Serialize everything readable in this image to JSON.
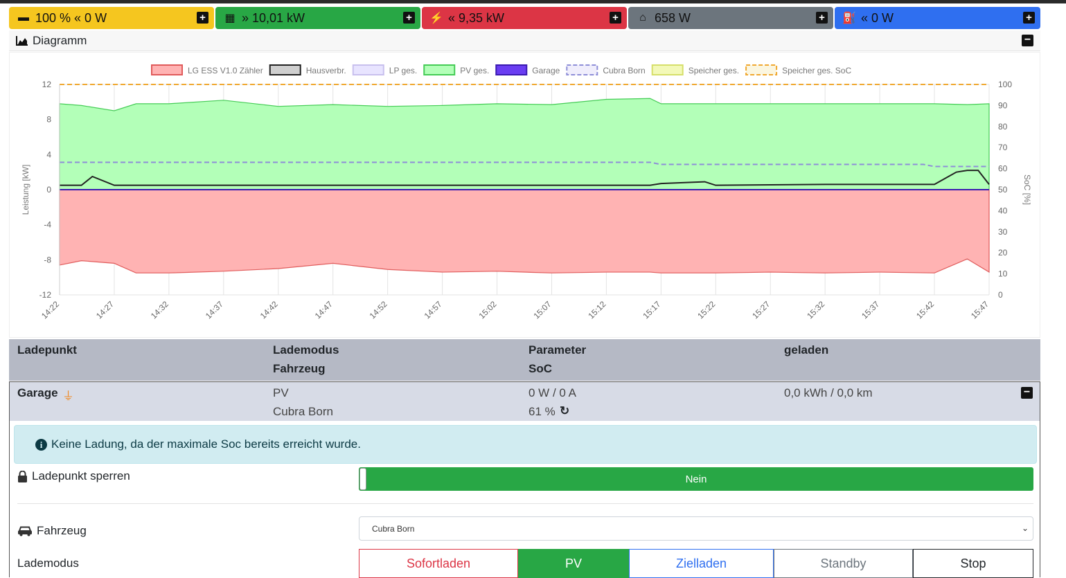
{
  "stats": {
    "battery": {
      "text": "100 % « 0 W",
      "icon": "battery-icon"
    },
    "pv": {
      "text": "» 10,01 kW",
      "icon": "solar-panel-icon"
    },
    "grid": {
      "text": "« 9,35 kW",
      "icon": "power-tower-icon"
    },
    "house": {
      "text": "658 W",
      "icon": "home-icon"
    },
    "charge": {
      "text": "« 0 W",
      "icon": "charging-station-icon"
    }
  },
  "diagram": {
    "title": "Diagramm"
  },
  "chart_data": {
    "type": "area",
    "title": "",
    "ylabel": "Leistung [kW]",
    "y2label": "SoC [%]",
    "ylim": [
      -12,
      12
    ],
    "y2lim": [
      0,
      100
    ],
    "yticks": [
      "12",
      "8",
      "4",
      "0",
      "-4",
      "-8",
      "-12"
    ],
    "y2ticks": [
      "100",
      "90",
      "80",
      "70",
      "60",
      "50",
      "40",
      "30",
      "20",
      "10",
      "0"
    ],
    "xticks": [
      "14:22",
      "14:27",
      "14:32",
      "14:37",
      "14:42",
      "14:47",
      "14:52",
      "14:57",
      "15:02",
      "15:07",
      "15:12",
      "15:17",
      "15:22",
      "15:27",
      "15:32",
      "15:37",
      "15:42",
      "15:47"
    ],
    "legend": [
      {
        "name": "LG ESS V1.0 Zähler",
        "fill": "#ffb3b3",
        "stroke": "#e05a5a",
        "dash": false
      },
      {
        "name": "Hausverbr.",
        "fill": "#cfcfcf",
        "stroke": "#222222",
        "dash": false
      },
      {
        "name": "LP ges.",
        "fill": "#e8e4ff",
        "stroke": "#c8c0ee",
        "dash": false
      },
      {
        "name": "PV ges.",
        "fill": "#b3ffb8",
        "stroke": "#44cc55",
        "dash": false
      },
      {
        "name": "Garage",
        "fill": "#6a3df2",
        "stroke": "#3a1ab0",
        "dash": false
      },
      {
        "name": "Cubra Born",
        "fill": "#f0eefc",
        "stroke": "#8e8ed8",
        "dash": true
      },
      {
        "name": "Speicher ges.",
        "fill": "#f3f9b8",
        "stroke": "#d6df6a",
        "dash": false
      },
      {
        "name": "Speicher ges. SoC",
        "fill": "#fbf6e0",
        "stroke": "#f0a830",
        "dash": true
      }
    ],
    "series": [
      {
        "name": "PV ges.",
        "x": [
          "14:22",
          "14:24",
          "14:27",
          "14:29",
          "14:32",
          "14:37",
          "14:42",
          "14:47",
          "14:52",
          "14:57",
          "15:02",
          "15:07",
          "15:12",
          "15:16",
          "15:17",
          "15:22",
          "15:27",
          "15:32",
          "15:37",
          "15:42",
          "15:45",
          "15:47"
        ],
        "values": [
          9.8,
          9.6,
          9.0,
          9.8,
          9.8,
          10.2,
          9.5,
          9.7,
          9.5,
          9.6,
          9.8,
          9.7,
          10.3,
          10.4,
          9.8,
          9.8,
          9.8,
          9.8,
          9.8,
          9.8,
          9.7,
          9.8
        ]
      },
      {
        "name": "LG ESS V1.0 Zähler",
        "x": [
          "14:22",
          "14:24",
          "14:27",
          "14:29",
          "14:32",
          "14:37",
          "14:42",
          "14:47",
          "14:52",
          "14:57",
          "15:02",
          "15:07",
          "15:12",
          "15:16",
          "15:17",
          "15:22",
          "15:27",
          "15:32",
          "15:37",
          "15:42",
          "15:45",
          "15:47"
        ],
        "values": [
          -8.6,
          -8.1,
          -8.4,
          -9.5,
          -9.5,
          -9.3,
          -9.0,
          -8.4,
          -9.1,
          -9.4,
          -9.3,
          -9.5,
          -9.4,
          -9.4,
          -9.5,
          -9.5,
          -9.4,
          -9.5,
          -9.4,
          -9.5,
          -7.9,
          -9.4
        ]
      },
      {
        "name": "Hausverbr.",
        "x": [
          "14:22",
          "14:24",
          "14:25",
          "14:27",
          "14:37",
          "14:47",
          "14:57",
          "15:07",
          "15:16",
          "15:17",
          "15:21",
          "15:22",
          "15:32",
          "15:42",
          "15:44",
          "15:45",
          "15:46",
          "15:47"
        ],
        "values": [
          0.5,
          0.5,
          1.5,
          0.5,
          0.5,
          0.5,
          0.5,
          0.5,
          0.5,
          0.7,
          0.9,
          0.5,
          0.6,
          0.6,
          2.0,
          2.2,
          2.2,
          0.6
        ]
      },
      {
        "name": "Garage",
        "x": [
          "14:22",
          "15:47"
        ],
        "values": [
          0,
          0
        ]
      },
      {
        "name": "Cubra Born",
        "x": [
          "14:22",
          "15:16",
          "15:17",
          "15:41",
          "15:42",
          "15:47"
        ],
        "values": [
          63,
          63,
          62,
          62,
          61,
          61
        ],
        "axis": "y2"
      },
      {
        "name": "Speicher ges. SoC",
        "x": [
          "14:22",
          "15:47"
        ],
        "values": [
          100,
          100
        ],
        "axis": "y2"
      }
    ]
  },
  "table": {
    "head": {
      "ladepunkt": "Ladepunkt",
      "lademodus": "Lademodus",
      "fahrzeug": "Fahrzeug",
      "parameter": "Parameter",
      "soc": "SoC",
      "geladen": "geladen"
    },
    "row": {
      "name": "Garage",
      "mode": "PV",
      "vehicle": "Cubra Born",
      "power": "0 W / 0 A",
      "soc": "61 %",
      "charged": "0,0 kWh / 0,0 km"
    }
  },
  "alert": "Keine Ladung, da der maximale Soc bereits erreicht wurde.",
  "lock": {
    "label": "Ladepunkt sperren",
    "value": "Nein"
  },
  "vehicle_field": {
    "label": "Fahrzeug",
    "value": "Cubra Born"
  },
  "charge_mode": {
    "label": "Lademodus",
    "options": [
      {
        "label": "Sofortladen",
        "color": "#dc3545",
        "active": false
      },
      {
        "label": "PV",
        "color": "#28a745",
        "active": true
      },
      {
        "label": "Zielladen",
        "color": "#2f6ff0",
        "active": false
      },
      {
        "label": "Standby",
        "color": "#6c757d",
        "active": false
      },
      {
        "label": "Stop",
        "color": "#212529",
        "active": false
      }
    ]
  }
}
